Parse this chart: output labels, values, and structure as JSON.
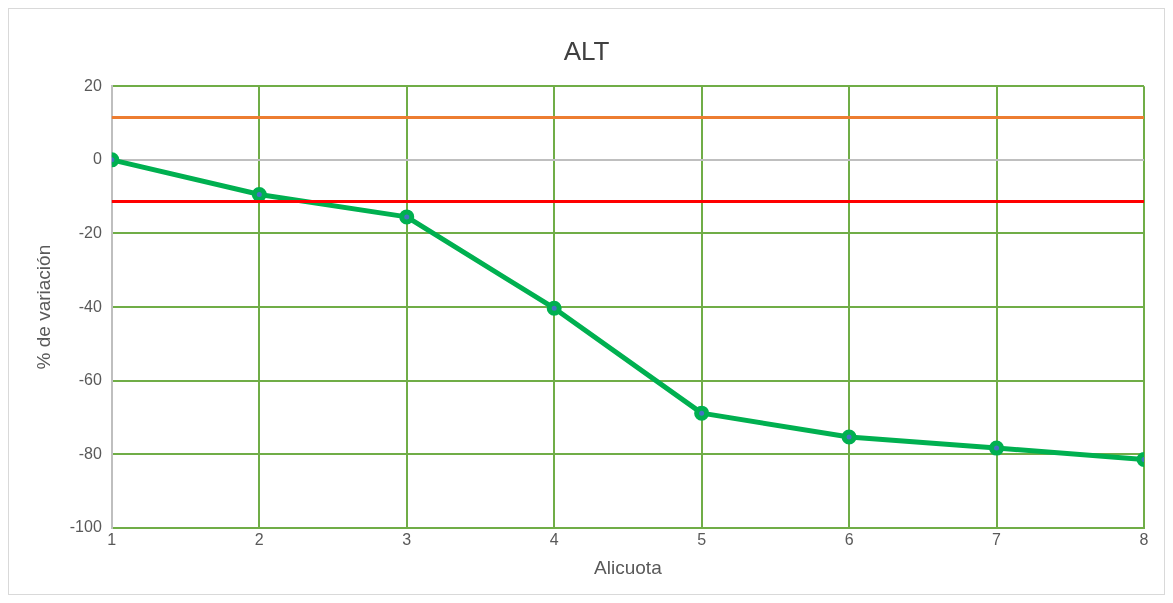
{
  "chart_data": {
    "type": "line",
    "title": "ALT",
    "xlabel": "Alicuota",
    "ylabel": "% de variación",
    "x": [
      1,
      2,
      3,
      4,
      5,
      6,
      7,
      8
    ],
    "series": [
      {
        "color": "#00b050",
        "values": [
          0,
          -9.4,
          -15.5,
          -40.3,
          -68.8,
          -75.3,
          -78.3,
          -81.4
        ]
      }
    ],
    "xlim": [
      1,
      8
    ],
    "xticks": [
      1,
      2,
      3,
      4,
      5,
      6,
      7,
      8
    ],
    "ylim": [
      -100,
      20
    ],
    "yticks": [
      -100,
      -80,
      -60,
      -40,
      -20,
      0,
      20
    ],
    "ref_lines": [
      {
        "axis": "y",
        "value": 11.5,
        "color": "#ed7d31"
      },
      {
        "axis": "y",
        "value": -11.3,
        "color": "#ff0000"
      }
    ],
    "grid": true,
    "legend": false,
    "marker": "circle",
    "line_style": "solid"
  }
}
